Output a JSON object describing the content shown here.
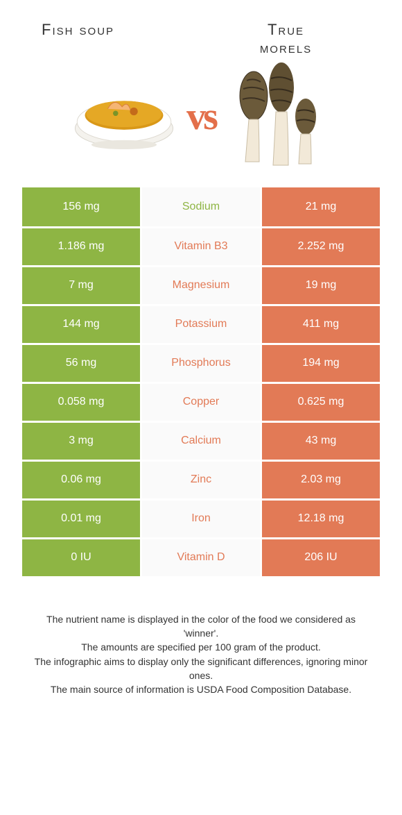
{
  "colors": {
    "left": "#8eb544",
    "right": "#e27a56",
    "mid_text_left": "#8eb544",
    "mid_text_right": "#e27a56"
  },
  "header": {
    "left_title": "Fish soup",
    "right_title_line1": "True",
    "right_title_line2": "morels",
    "vs": "vs"
  },
  "rows": [
    {
      "left": "156 mg",
      "mid": "Sodium",
      "right": "21 mg",
      "winner": "left"
    },
    {
      "left": "1.186 mg",
      "mid": "Vitamin B3",
      "right": "2.252 mg",
      "winner": "right"
    },
    {
      "left": "7 mg",
      "mid": "Magnesium",
      "right": "19 mg",
      "winner": "right"
    },
    {
      "left": "144 mg",
      "mid": "Potassium",
      "right": "411 mg",
      "winner": "right"
    },
    {
      "left": "56 mg",
      "mid": "Phosphorus",
      "right": "194 mg",
      "winner": "right"
    },
    {
      "left": "0.058 mg",
      "mid": "Copper",
      "right": "0.625 mg",
      "winner": "right"
    },
    {
      "left": "3 mg",
      "mid": "Calcium",
      "right": "43 mg",
      "winner": "right"
    },
    {
      "left": "0.06 mg",
      "mid": "Zinc",
      "right": "2.03 mg",
      "winner": "right"
    },
    {
      "left": "0.01 mg",
      "mid": "Iron",
      "right": "12.18 mg",
      "winner": "right"
    },
    {
      "left": "0 IU",
      "mid": "Vitamin D",
      "right": "206 IU",
      "winner": "right"
    }
  ],
  "footer": {
    "line1": "The nutrient name is displayed in the color of the food we considered as 'winner'.",
    "line2": "The amounts are specified per 100 gram of the product.",
    "line3": "The infographic aims to display only the significant differences, ignoring minor ones.",
    "line4": "The main source of information is USDA Food Composition Database."
  }
}
